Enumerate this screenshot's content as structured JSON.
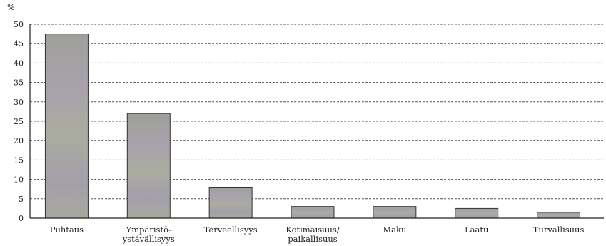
{
  "chart_data": {
    "type": "bar",
    "y_unit": "%",
    "categories": [
      [
        "Puhtaus"
      ],
      [
        "Ympäristö-",
        "ystävällisyys"
      ],
      [
        "Terveellisyys"
      ],
      [
        "Kotimaisuus/",
        "paikallisuus"
      ],
      [
        "Maku"
      ],
      [
        "Laatu"
      ],
      [
        "Turvallisuus"
      ]
    ],
    "values": [
      47.5,
      27,
      8,
      3,
      3,
      2.5,
      1.5
    ],
    "ylim": [
      0,
      50
    ],
    "yticks": [
      0,
      5,
      10,
      15,
      20,
      25,
      30,
      35,
      40,
      45,
      50
    ],
    "grid": true,
    "legend": "none",
    "colors": {
      "bar_fill": "#a9aaa0",
      "bar_fill_alt": "#a59fae",
      "grid": "#555555",
      "axis": "#222222"
    }
  }
}
